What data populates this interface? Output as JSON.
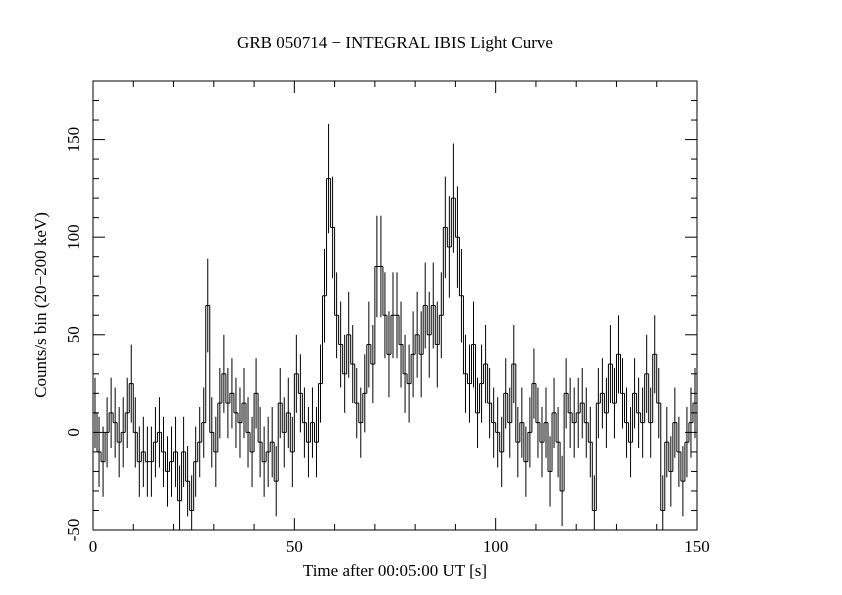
{
  "chart_data": {
    "type": "step-histogram",
    "title": "GRB 050714 − INTEGRAL IBIS Light Curve",
    "x_label": "Time after 00:05:00 UT [s]",
    "y_label": "Counts/s bin (20−200 keV)",
    "color": "#000000",
    "bins": [
      0,
      1,
      2,
      3,
      4,
      5,
      6,
      7,
      8,
      9,
      10,
      11,
      12,
      13,
      14,
      15,
      16,
      17,
      18,
      19,
      20,
      21,
      22,
      23,
      24,
      25,
      26,
      27,
      28,
      29,
      30,
      31,
      32,
      33,
      34,
      35,
      36,
      37,
      38,
      39,
      40,
      41,
      42,
      43,
      44,
      45,
      46,
      47,
      48,
      49,
      50,
      51,
      52,
      53,
      54,
      55,
      56,
      57,
      58,
      59,
      60,
      61,
      62,
      63,
      64,
      65,
      66,
      67,
      68,
      69,
      70,
      71,
      72,
      73,
      74,
      75,
      76,
      77,
      78,
      79,
      80,
      81,
      82,
      83,
      84,
      85,
      86,
      87,
      88,
      89,
      90,
      91,
      92,
      93,
      94,
      95,
      96,
      97,
      98,
      99,
      100,
      101,
      102,
      103,
      104,
      105,
      106,
      107,
      108,
      109,
      110,
      111,
      112,
      113,
      114,
      115,
      116,
      117,
      118,
      119,
      120,
      121,
      122,
      123,
      124,
      125,
      126,
      127,
      128,
      129,
      130,
      131,
      132,
      133,
      134,
      135,
      136,
      137,
      138,
      139,
      140,
      141,
      142,
      143,
      144,
      145,
      146,
      147,
      148,
      149,
      150
    ],
    "values": [
      10,
      -10,
      -15,
      0,
      10,
      5,
      -5,
      0,
      10,
      25,
      0,
      -15,
      -10,
      -15,
      -15,
      -5,
      0,
      -10,
      -20,
      -15,
      -10,
      -35,
      -10,
      -25,
      -40,
      -15,
      -5,
      5,
      65,
      0,
      -10,
      15,
      30,
      15,
      20,
      10,
      5,
      15,
      0,
      -10,
      20,
      -5,
      -15,
      -10,
      -5,
      -25,
      15,
      0,
      10,
      -10,
      30,
      20,
      5,
      -5,
      5,
      -5,
      25,
      70,
      130,
      105,
      60,
      45,
      30,
      50,
      35,
      15,
      5,
      20,
      45,
      35,
      85,
      85,
      60,
      40,
      60,
      60,
      45,
      30,
      25,
      40,
      50,
      40,
      65,
      50,
      65,
      45,
      60,
      105,
      95,
      120,
      100,
      70,
      30,
      25,
      45,
      10,
      25,
      35,
      15,
      5,
      0,
      -10,
      20,
      5,
      35,
      -5,
      5,
      -15,
      0,
      25,
      5,
      -5,
      5,
      -20,
      10,
      -5,
      -30,
      20,
      10,
      5,
      10,
      15,
      5,
      -5,
      -40,
      15,
      20,
      10,
      35,
      15,
      40,
      20,
      5,
      -5,
      20,
      10,
      5,
      30,
      5,
      40,
      15,
      -40,
      -5,
      -20,
      5,
      -10,
      -25,
      -5,
      5,
      15
    ],
    "errors": [
      18,
      18,
      18,
      18,
      18,
      18,
      18,
      18,
      18,
      20,
      18,
      18,
      18,
      18,
      18,
      18,
      18,
      18,
      18,
      18,
      18,
      18,
      18,
      18,
      18,
      18,
      18,
      18,
      24,
      18,
      18,
      18,
      20,
      18,
      18,
      18,
      18,
      18,
      18,
      18,
      18,
      18,
      18,
      18,
      18,
      18,
      18,
      18,
      18,
      18,
      20,
      20,
      18,
      18,
      18,
      18,
      20,
      24,
      28,
      26,
      22,
      22,
      20,
      22,
      20,
      18,
      18,
      20,
      22,
      20,
      26,
      26,
      22,
      22,
      22,
      22,
      22,
      20,
      20,
      22,
      22,
      22,
      22,
      22,
      22,
      22,
      22,
      26,
      26,
      28,
      26,
      24,
      20,
      20,
      22,
      18,
      20,
      20,
      18,
      18,
      18,
      18,
      18,
      18,
      20,
      18,
      18,
      18,
      18,
      18,
      18,
      18,
      18,
      18,
      18,
      18,
      18,
      18,
      18,
      18,
      18,
      18,
      18,
      18,
      18,
      18,
      18,
      18,
      20,
      18,
      20,
      18,
      18,
      18,
      18,
      18,
      18,
      20,
      18,
      20,
      18,
      18,
      18,
      18,
      18,
      18,
      18,
      18,
      18,
      18
    ],
    "xlim": [
      0,
      150
    ],
    "ylim": [
      -50,
      180
    ],
    "xticks": [
      0,
      50,
      100,
      150
    ],
    "yticks": [
      -50,
      0,
      50,
      100,
      150
    ],
    "xminorticks": [
      10,
      20,
      30,
      40,
      60,
      70,
      80,
      90,
      110,
      120,
      130,
      140
    ],
    "yminorticks": [
      -40,
      -30,
      -20,
      -10,
      10,
      20,
      30,
      40,
      60,
      70,
      80,
      90,
      110,
      120,
      130,
      140,
      160,
      170
    ]
  }
}
